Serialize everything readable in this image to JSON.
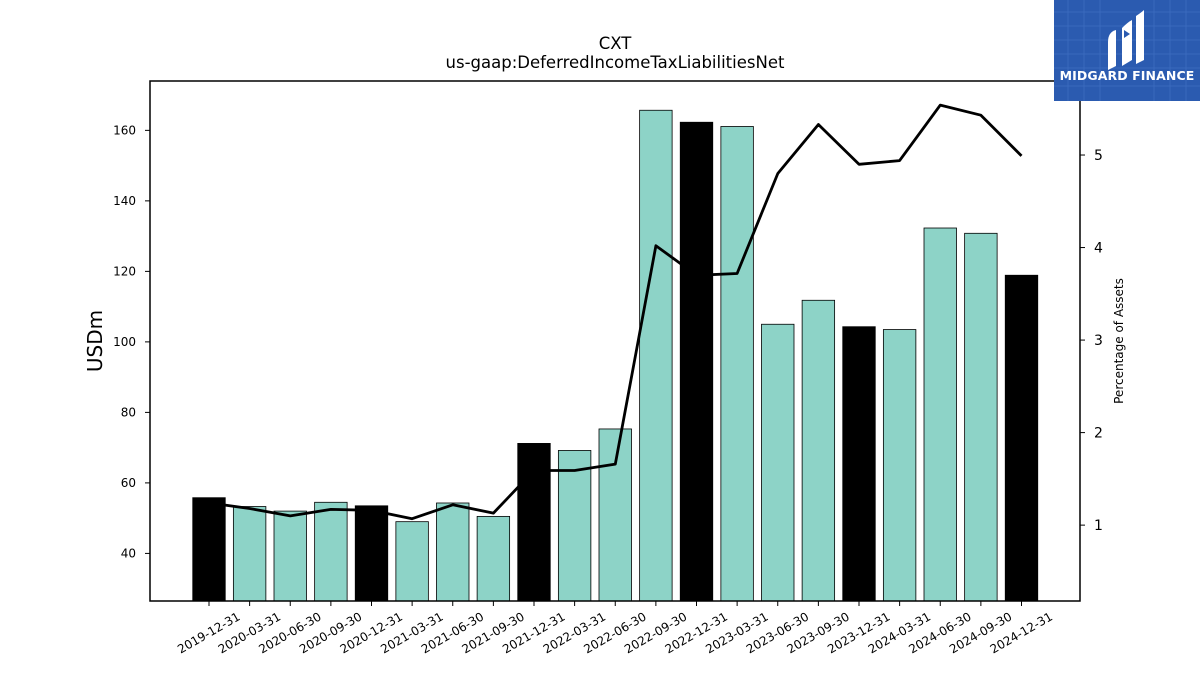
{
  "chart_data": {
    "type": "bar",
    "title": "CXT",
    "subtitle": "us-gaap:DeferredIncomeTaxLiabilitiesNet",
    "ylabel": "USDm",
    "y2label": "Percentage of Assets",
    "ylim": [
      26.5,
      174
    ],
    "y2lim": [
      0.18,
      5.8
    ],
    "yticks": [
      40,
      60,
      80,
      100,
      120,
      140,
      160
    ],
    "y2ticks": [
      1,
      2,
      3,
      4,
      5
    ],
    "categories": [
      "2019-12-31",
      "2020-03-31",
      "2020-06-30",
      "2020-09-30",
      "2020-12-31",
      "2021-03-31",
      "2021-06-30",
      "2021-09-30",
      "2021-12-31",
      "2022-03-31",
      "2022-06-30",
      "2022-09-30",
      "2022-12-31",
      "2023-03-31",
      "2023-06-30",
      "2023-09-30",
      "2023-12-31",
      "2024-03-31",
      "2024-06-30",
      "2024-09-30",
      "2024-12-31"
    ],
    "series": [
      {
        "type": "bar",
        "values": [
          55.8,
          53.3,
          52.0,
          54.5,
          53.5,
          49.0,
          54.3,
          50.5,
          71.2,
          69.2,
          75.3,
          165.7,
          162.3,
          161.1,
          105.0,
          111.8,
          104.3,
          103.5,
          132.3,
          130.8,
          118.9
        ],
        "highlight": [
          true,
          false,
          false,
          false,
          true,
          false,
          false,
          false,
          true,
          false,
          false,
          false,
          true,
          false,
          false,
          false,
          true,
          false,
          false,
          false,
          true
        ]
      },
      {
        "type": "line",
        "axis": "right",
        "values": [
          1.24,
          1.18,
          1.1,
          1.17,
          1.16,
          1.07,
          1.22,
          1.13,
          1.59,
          1.59,
          1.66,
          4.02,
          3.7,
          3.72,
          4.8,
          5.33,
          4.9,
          4.94,
          5.54,
          5.43,
          4.99
        ]
      }
    ],
    "colors": {
      "bar": "#8dd3c7",
      "bar_highlight": "#000000",
      "line": "#000000",
      "bar_edge": "#000000"
    },
    "grid": false,
    "legend": "none"
  },
  "logo": {
    "text": "MIDGARD FINANCE",
    "background": "#2b5bb0",
    "icon": "midgard-logo-icon"
  }
}
